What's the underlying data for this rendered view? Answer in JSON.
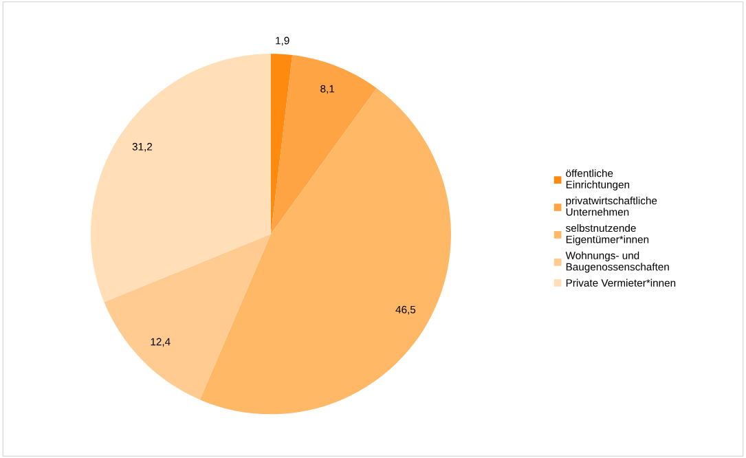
{
  "chart_data": {
    "type": "pie",
    "categories": [
      "öffentliche\nEinrichtungen",
      "privatwirtschaftliche\nUnternehmen",
      "selbstnutzende\nEigentümer*innen",
      "Wohnungs- und\nBaugenossenschaften",
      "Private Vermieter*innen"
    ],
    "values": [
      1.9,
      8.1,
      46.5,
      12.4,
      31.2
    ],
    "value_labels": [
      "1,9",
      "8,1",
      "46,5",
      "12,4",
      "31,2"
    ],
    "colors": [
      "#ff8a10",
      "#ffa445",
      "#ffb866",
      "#ffcb91",
      "#ffdeb8"
    ],
    "legend": "right"
  }
}
